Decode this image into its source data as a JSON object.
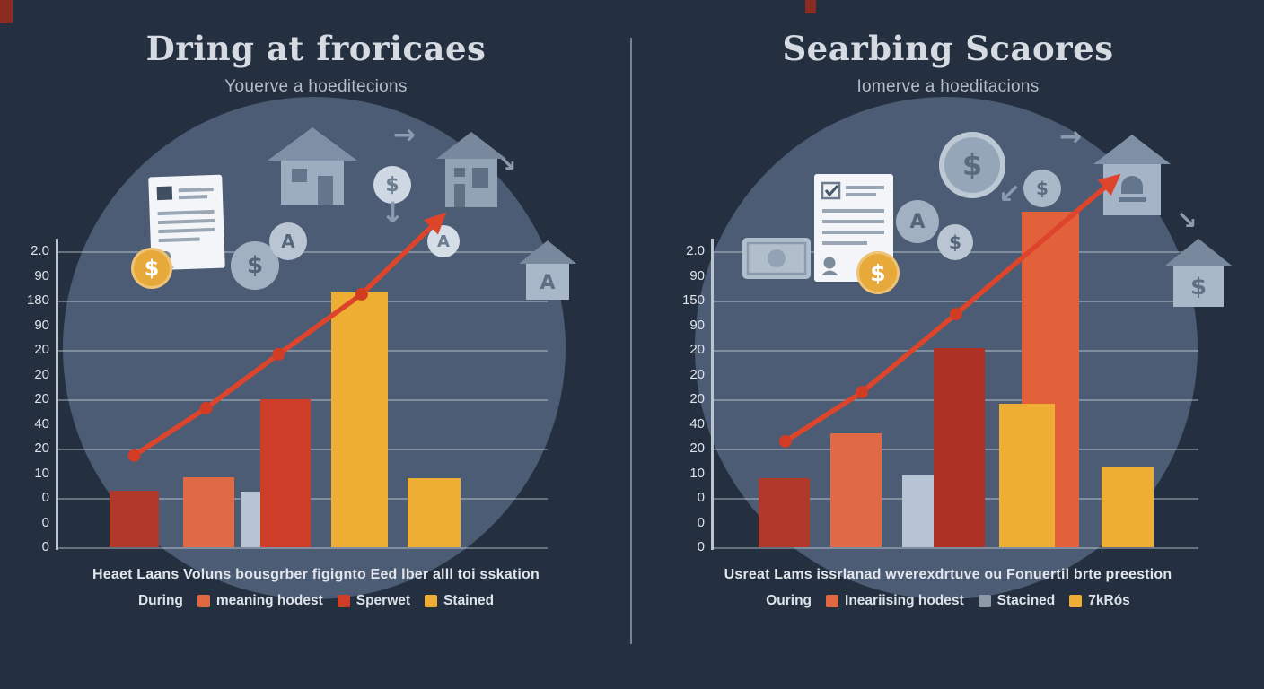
{
  "page": {
    "background": "#243040"
  },
  "glyphs": {
    "dollar": "$",
    "letter_a": "A",
    "down_arrow": "↓",
    "right_arrow": "→",
    "down_right_arrow": "↘",
    "down_left_arrow": "↙"
  },
  "colors": {
    "bar_dark_red": "#b0392b",
    "bar_orange": "#e06a45",
    "bar_pale_blue": "#b7c4d4",
    "bar_red": "#cd3d27",
    "bar_amber": "#eead33",
    "trend_line_red": "#dc452c",
    "icon_gray": "#9cabbe",
    "coin_gold": "#e7a93a"
  },
  "chart_data": [
    {
      "type": "bar",
      "has_trend_line": true,
      "title": "Dring at froricaes",
      "subtitle": "Youerve a hoeditecions",
      "y_axis": {
        "tick_labels": [
          "2.0",
          "90",
          "180",
          "90",
          "20",
          "20",
          "20",
          "40",
          "20",
          "10",
          "0",
          "0",
          "0"
        ]
      },
      "bars": [
        {
          "x": 0.105,
          "w": 0.1,
          "h": 0.19,
          "color": "#b0392b",
          "z": 2
        },
        {
          "x": 0.255,
          "w": 0.105,
          "h": 0.235,
          "color": "#e06a45",
          "z": 2
        },
        {
          "x": 0.372,
          "w": 0.095,
          "h": 0.188,
          "color": "#b7c4d4",
          "z": 1
        },
        {
          "x": 0.413,
          "w": 0.102,
          "h": 0.5,
          "color": "#cd3d27",
          "z": 2
        },
        {
          "x": 0.558,
          "w": 0.115,
          "h": 0.862,
          "color": "#eead33",
          "z": 3
        },
        {
          "x": 0.714,
          "w": 0.108,
          "h": 0.233,
          "color": "#eead33",
          "z": 2
        }
      ],
      "trend_line": {
        "color": "#dc452c",
        "marker_color": "#d23b24",
        "marker_count": 4,
        "points": [
          [
            0.155,
            0.31
          ],
          [
            0.302,
            0.47
          ],
          [
            0.45,
            0.652
          ],
          [
            0.62,
            0.855
          ],
          [
            0.77,
            1.095
          ]
        ]
      },
      "caption": "Heaet Laans Voluns bousgrber figignto Eed lber alll toi sskation",
      "legend": [
        {
          "label": "During"
        },
        {
          "label": "meaning hodest",
          "color": "#e06843"
        },
        {
          "label": "Sperwet",
          "color": "#cd3d27"
        },
        {
          "label": "Stained",
          "color": "#eead33"
        }
      ],
      "icons": [
        "house-icon",
        "document-icon",
        "gold-dollar-coin-icon",
        "dollar-badge-icon",
        "letter-a-badge-icon",
        "dollar-circle-icon",
        "letter-a-circle-icon",
        "bank-house-icon",
        "house-a-icon",
        "down-arrow-icon",
        "right-arrow-icon",
        "down-right-arrow-icon"
      ]
    },
    {
      "type": "bar",
      "has_trend_line": true,
      "title": "Searbing Scaores",
      "subtitle": "Iomerve a hoeditacions",
      "y_axis": {
        "tick_labels": [
          "2.0",
          "90",
          "150",
          "90",
          "20",
          "20",
          "20",
          "40",
          "20",
          "10",
          "0",
          "0",
          "0"
        ]
      },
      "bars": [
        {
          "x": 0.093,
          "w": 0.105,
          "h": 0.233,
          "color": "#b0392b",
          "z": 2
        },
        {
          "x": 0.241,
          "w": 0.105,
          "h": 0.385,
          "color": "#e06a45",
          "z": 2
        },
        {
          "x": 0.389,
          "w": 0.095,
          "h": 0.242,
          "color": "#b7c4d4",
          "z": 1
        },
        {
          "x": 0.454,
          "w": 0.105,
          "h": 0.673,
          "color": "#ad3124",
          "z": 2
        },
        {
          "x": 0.588,
          "w": 0.115,
          "h": 0.485,
          "color": "#eead33",
          "z": 3
        },
        {
          "x": 0.635,
          "w": 0.118,
          "h": 1.133,
          "color": "#e2613b",
          "z": 2
        },
        {
          "x": 0.8,
          "w": 0.108,
          "h": 0.273,
          "color": "#eead33",
          "z": 2
        }
      ],
      "trend_line": {
        "color": "#dc452c",
        "marker_color": "#d23b24",
        "marker_count": 3,
        "points": [
          [
            0.148,
            0.358
          ],
          [
            0.306,
            0.524
          ],
          [
            0.5,
            0.788
          ],
          [
            0.815,
            1.227
          ]
        ]
      },
      "caption": "Usreat Lams issrlanad wverexdrtuve ou Fonuertil brte preestion",
      "legend": [
        {
          "label": "Ouring"
        },
        {
          "label": "Ineariising hodest",
          "color": "#e06843"
        },
        {
          "label": "Stacined",
          "color": "#8e9aa8"
        },
        {
          "label": "7kRós",
          "color": "#eead33"
        }
      ],
      "icons": [
        "money-bill-icon",
        "document-icon",
        "gold-dollar-coin-icon",
        "letter-a-badge-icon",
        "dollar-badge-icon",
        "large-dollar-coin-icon",
        "small-dollar-coin-icon",
        "bell-house-icon",
        "dollar-house-icon",
        "right-arrow-icon",
        "down-left-arrow-icon",
        "down-right-arrow-icon"
      ]
    }
  ]
}
